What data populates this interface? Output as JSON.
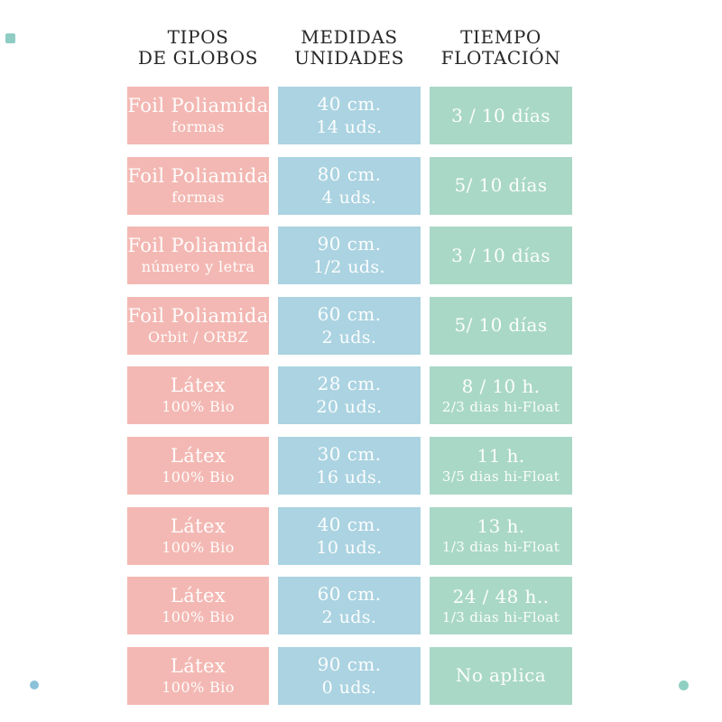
{
  "chart_data": {
    "type": "table",
    "columns": [
      {
        "header_line1": "TIPOS",
        "header_line2": "DE GLOBOS",
        "color": "#f3b8b3"
      },
      {
        "header_line1": "MEDIDAS",
        "header_line2": "UNIDADES",
        "color": "#abd3e1"
      },
      {
        "header_line1": "TIEMPO",
        "header_line2": "FLOTACIÓN",
        "color": "#a9d8c6"
      }
    ],
    "rows": [
      {
        "tipo_line1": "Foil Poliamida",
        "tipo_line2": "formas",
        "medida_line1": "40 cm.",
        "medida_line2": "14 uds.",
        "tiempo_line1": "3 / 10 días",
        "tiempo_line2": ""
      },
      {
        "tipo_line1": "Foil Poliamida",
        "tipo_line2": "formas",
        "medida_line1": "80 cm.",
        "medida_line2": "4 uds.",
        "tiempo_line1": "5/ 10 días",
        "tiempo_line2": ""
      },
      {
        "tipo_line1": "Foil Poliamida",
        "tipo_line2": "número y letra",
        "medida_line1": "90 cm.",
        "medida_line2": "1/2 uds.",
        "tiempo_line1": "3 / 10 días",
        "tiempo_line2": ""
      },
      {
        "tipo_line1": "Foil Poliamida",
        "tipo_line2": "Orbit / ORBZ",
        "medida_line1": "60 cm.",
        "medida_line2": "2 uds.",
        "tiempo_line1": "5/ 10 días",
        "tiempo_line2": ""
      },
      {
        "tipo_line1": "Látex",
        "tipo_line2": "100% Bio",
        "medida_line1": "28 cm.",
        "medida_line2": "20 uds.",
        "tiempo_line1": "8 / 10 h.",
        "tiempo_line2": "2/3 dias hi-Float"
      },
      {
        "tipo_line1": "Látex",
        "tipo_line2": "100% Bio",
        "medida_line1": "30 cm.",
        "medida_line2": "16 uds.",
        "tiempo_line1": "11 h.",
        "tiempo_line2": "3/5 dias hi-Float"
      },
      {
        "tipo_line1": "Látex",
        "tipo_line2": "100% Bio",
        "medida_line1": "40 cm.",
        "medida_line2": "10 uds.",
        "tiempo_line1": "13 h.",
        "tiempo_line2": "1/3 dias hi-Float"
      },
      {
        "tipo_line1": "Látex",
        "tipo_line2": "100% Bio",
        "medida_line1": "60 cm.",
        "medida_line2": "2 uds.",
        "tiempo_line1": "24 / 48 h..",
        "tiempo_line2": "1/3 dias hi-Float"
      },
      {
        "tipo_line1": "Látex",
        "tipo_line2": "100% Bio",
        "medida_line1": "90 cm.",
        "medida_line2": "0 uds.",
        "tiempo_line1": "No aplica",
        "tiempo_line2": ""
      }
    ]
  },
  "page": {
    "background": "#ffffff",
    "header_text_color": "#282828",
    "cell_text_color": "#ffffff"
  },
  "decorations": {
    "top_left_square_color": "#8fcdc4",
    "bottom_left_dot_color": "#8cc2d9",
    "bottom_right_dot_color": "#90d0c2"
  }
}
